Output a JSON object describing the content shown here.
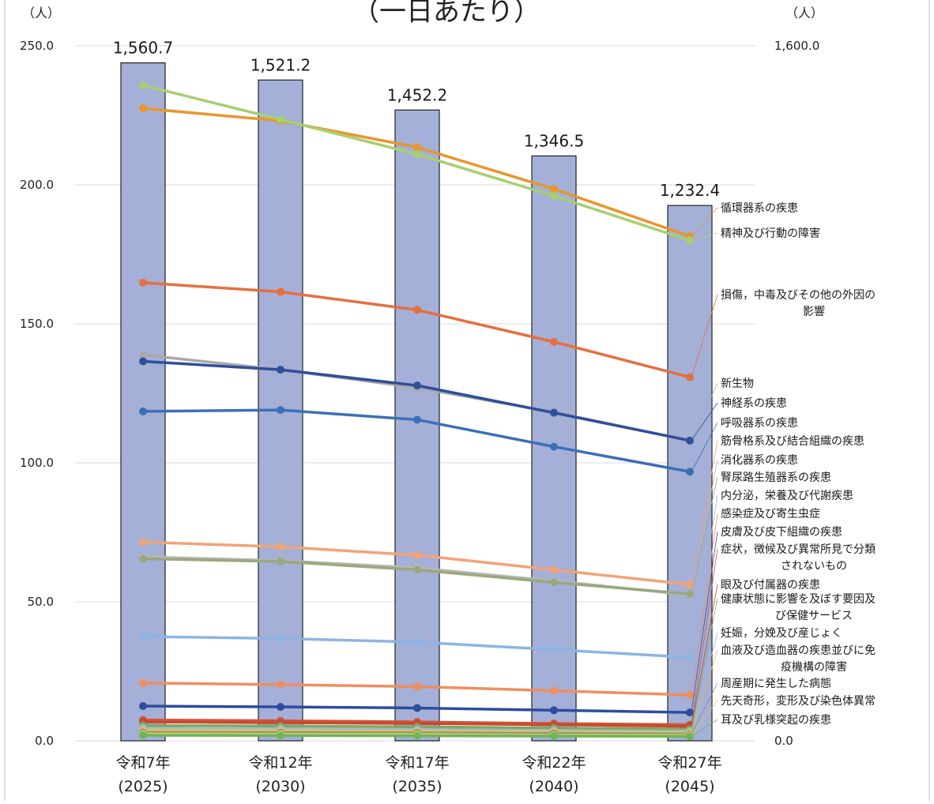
{
  "chart_data": {
    "type": "bar+line",
    "title": "（一日あたり）",
    "left_unit": "（人）",
    "right_unit": "（人）",
    "left_ylim": [
      0,
      250
    ],
    "left_ticks": [
      "250.0",
      "200.0",
      "150.0",
      "100.0",
      "50.0",
      "0.0"
    ],
    "right_ylim": [
      0,
      1600
    ],
    "right_ticks": [
      "1,600.0",
      "0.0"
    ],
    "grid": true,
    "legend_position": "right",
    "categories": [
      {
        "line1": "令和7年",
        "line2": "(2025)"
      },
      {
        "line1": "令和12年",
        "line2": "(2030)"
      },
      {
        "line1": "令和17年",
        "line2": "(2035)"
      },
      {
        "line1": "令和22年",
        "line2": "(2040)"
      },
      {
        "line1": "令和27年",
        "line2": "(2045)"
      }
    ],
    "bars": {
      "values": [
        1560.7,
        1521.2,
        1452.2,
        1346.5,
        1232.4
      ],
      "labels": [
        "1,560.7",
        "1,521.2",
        "1,452.2",
        "1,346.5",
        "1,232.4"
      ],
      "color": "#a4b0d8"
    },
    "series": [
      {
        "name": "循環器系の疾患",
        "values": [
          227.5,
          223.0,
          213.5,
          198.5,
          181.5
        ],
        "color": "#e8962e"
      },
      {
        "name": "精神及び行動の障害",
        "values": [
          235.8,
          223.5,
          211.0,
          196.0,
          180.0
        ],
        "color": "#a7cf72"
      },
      {
        "name": "損傷，中毒及びその他の外因の影響",
        "values": [
          164.8,
          161.5,
          155.0,
          143.5,
          130.8
        ],
        "color": "#e66f3e"
      },
      {
        "name": "新生物",
        "values": [
          138.8,
          133.5,
          127.0,
          118.2,
          108.0
        ],
        "color": "#a9a9a9"
      },
      {
        "name": "神経系の疾患",
        "values": [
          136.5,
          133.5,
          127.8,
          118.0,
          108.0
        ],
        "color": "#2f4f98"
      },
      {
        "name": "呼吸器系の疾患",
        "values": [
          118.5,
          119.0,
          115.5,
          105.8,
          96.8
        ],
        "color": "#3d6fb5"
      },
      {
        "name": "筋骨格系及び結合組織の疾患",
        "values": [
          71.5,
          69.8,
          66.8,
          61.5,
          56.2
        ],
        "color": "#f2a376"
      },
      {
        "name": "消化器系の疾患",
        "values": [
          66.2,
          64.8,
          62.2,
          57.5,
          52.5
        ],
        "color": "#b8b8b8"
      },
      {
        "name": "腎尿路生殖器系の疾患",
        "values": [
          65.5,
          64.5,
          61.5,
          57.0,
          52.8
        ],
        "color": "#9aa87c"
      },
      {
        "name": "内分泌，栄養及び代謝疾患",
        "values": [
          37.5,
          36.8,
          35.5,
          32.8,
          30.0
        ],
        "color": "#8db4e2"
      },
      {
        "name": "感染症及び寄生虫症",
        "values": [
          20.8,
          20.2,
          19.5,
          18.0,
          16.5
        ],
        "color": "#f08e5f"
      },
      {
        "name": "皮膚及び皮下組織の疾患",
        "values": [
          12.5,
          12.2,
          11.8,
          11.0,
          10.2
        ],
        "color": "#2e4da0"
      },
      {
        "name": "症状，徴候及び異常所見で分類されないもの",
        "values": [
          7.5,
          7.2,
          6.8,
          6.2,
          5.8
        ],
        "color": "#d2553a"
      },
      {
        "name": "眼及び付属器の疾患",
        "values": [
          6.8,
          6.5,
          6.2,
          5.8,
          5.2
        ],
        "color": "#c84a2e"
      },
      {
        "name": "健康状態に影響を及ぼす要因及び保健サービス",
        "values": [
          5.5,
          5.3,
          5.0,
          4.6,
          4.2
        ],
        "color": "#7fa860"
      },
      {
        "name": "妊娠，分娩及び産じょく",
        "values": [
          4.5,
          4.3,
          4.0,
          3.7,
          3.4
        ],
        "color": "#9bbbe0"
      },
      {
        "name": "血液及び造血器の疾患並びに免疫機構の障害",
        "values": [
          3.8,
          3.6,
          3.4,
          3.2,
          2.9
        ],
        "color": "#e0c24a"
      },
      {
        "name": "周産期に発生した病態",
        "values": [
          3.0,
          2.9,
          2.8,
          2.6,
          2.4
        ],
        "color": "#8a8a8a"
      },
      {
        "name": "先天奇形，変形及び染色体異常",
        "values": [
          2.5,
          2.4,
          2.3,
          2.1,
          2.0
        ],
        "color": "#c9d45a"
      },
      {
        "name": "耳及び乳様突起の疾患",
        "values": [
          2.0,
          1.9,
          1.8,
          1.7,
          1.6
        ],
        "color": "#6fb45a"
      }
    ],
    "legend_items": [
      {
        "lines": [
          "循環器系の疾患"
        ]
      },
      {
        "lines": [
          "精神及び行動の障害"
        ]
      },
      {
        "lines": [
          "損傷，中毒及びその他の外因の",
          "影響"
        ]
      },
      {
        "lines": [
          "新生物"
        ]
      },
      {
        "lines": [
          "神経系の疾患"
        ]
      },
      {
        "lines": [
          "呼吸器系の疾患"
        ]
      },
      {
        "lines": [
          "筋骨格系及び結合組織の疾患"
        ]
      },
      {
        "lines": [
          "消化器系の疾患"
        ]
      },
      {
        "lines": [
          "腎尿路生殖器系の疾患"
        ]
      },
      {
        "lines": [
          "内分泌，栄養及び代謝疾患"
        ]
      },
      {
        "lines": [
          "感染症及び寄生虫症"
        ]
      },
      {
        "lines": [
          "皮膚及び皮下組織の疾患"
        ]
      },
      {
        "lines": [
          "症状，徴候及び異常所見で分類",
          "されないもの"
        ]
      },
      {
        "lines": [
          "眼及び付属器の疾患"
        ]
      },
      {
        "lines": [
          "健康状態に影響を及ぼす要因及",
          "び保健サービス"
        ]
      },
      {
        "lines": [
          "妊娠，分娩及び産じょく"
        ]
      },
      {
        "lines": [
          "血液及び造血器の疾患並びに免",
          "疫機構の障害"
        ]
      },
      {
        "lines": [
          "周産期に発生した病態"
        ]
      },
      {
        "lines": [
          "先天奇形，変形及び染色体異常"
        ]
      },
      {
        "lines": [
          "耳及び乳様突起の疾患"
        ]
      }
    ]
  }
}
